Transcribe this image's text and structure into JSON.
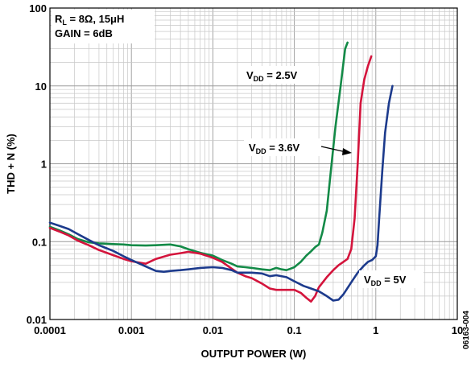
{
  "chart_data": {
    "type": "line",
    "xlabel": "OUTPUT POWER (W)",
    "ylabel": "THD + N (%)",
    "xscale": "log",
    "yscale": "log",
    "xlim": [
      0.0001,
      10
    ],
    "ylim": [
      0.01,
      100
    ],
    "x_ticks": [
      "0.0001",
      "0.001",
      "0.01",
      "0.1",
      "1",
      "10"
    ],
    "y_ticks": [
      "0.01",
      "0.1",
      "1",
      "10",
      "100"
    ],
    "grid": true,
    "annotations": [
      {
        "id": "cond1",
        "text": "RL = 8Ω, 15μH"
      },
      {
        "id": "cond2",
        "text": "GAIN = 6dB"
      }
    ],
    "series": [
      {
        "name": "VDD = 2.5V",
        "color": "#138a47",
        "points": [
          [
            0.0001,
            0.155
          ],
          [
            0.00013,
            0.14
          ],
          [
            0.00017,
            0.124
          ],
          [
            0.00022,
            0.108
          ],
          [
            0.0003,
            0.098
          ],
          [
            0.0004,
            0.095
          ],
          [
            0.0006,
            0.093
          ],
          [
            0.0008,
            0.092
          ],
          [
            0.001,
            0.09
          ],
          [
            0.0015,
            0.089
          ],
          [
            0.002,
            0.09
          ],
          [
            0.003,
            0.092
          ],
          [
            0.004,
            0.087
          ],
          [
            0.005,
            0.08
          ],
          [
            0.007,
            0.072
          ],
          [
            0.01,
            0.066
          ],
          [
            0.013,
            0.058
          ],
          [
            0.017,
            0.052
          ],
          [
            0.02,
            0.048
          ],
          [
            0.025,
            0.047
          ],
          [
            0.03,
            0.046
          ],
          [
            0.04,
            0.044
          ],
          [
            0.05,
            0.043
          ],
          [
            0.06,
            0.046
          ],
          [
            0.07,
            0.044
          ],
          [
            0.08,
            0.043
          ],
          [
            0.09,
            0.045
          ],
          [
            0.1,
            0.047
          ],
          [
            0.12,
            0.055
          ],
          [
            0.14,
            0.066
          ],
          [
            0.16,
            0.075
          ],
          [
            0.18,
            0.085
          ],
          [
            0.2,
            0.092
          ],
          [
            0.22,
            0.13
          ],
          [
            0.25,
            0.25
          ],
          [
            0.28,
            0.8
          ],
          [
            0.32,
            3
          ],
          [
            0.37,
            10
          ],
          [
            0.42,
            30
          ],
          [
            0.45,
            36
          ]
        ]
      },
      {
        "name": "VDD = 3.6V",
        "color": "#d4143c",
        "points": [
          [
            0.0001,
            0.15
          ],
          [
            0.00013,
            0.135
          ],
          [
            0.00017,
            0.12
          ],
          [
            0.00022,
            0.103
          ],
          [
            0.0003,
            0.09
          ],
          [
            0.0004,
            0.078
          ],
          [
            0.0006,
            0.067
          ],
          [
            0.0008,
            0.06
          ],
          [
            0.001,
            0.056
          ],
          [
            0.0015,
            0.052
          ],
          [
            0.002,
            0.06
          ],
          [
            0.003,
            0.068
          ],
          [
            0.004,
            0.071
          ],
          [
            0.005,
            0.074
          ],
          [
            0.006,
            0.072
          ],
          [
            0.007,
            0.07
          ],
          [
            0.01,
            0.062
          ],
          [
            0.013,
            0.055
          ],
          [
            0.017,
            0.045
          ],
          [
            0.02,
            0.04
          ],
          [
            0.025,
            0.036
          ],
          [
            0.03,
            0.034
          ],
          [
            0.04,
            0.029
          ],
          [
            0.05,
            0.025
          ],
          [
            0.06,
            0.024
          ],
          [
            0.08,
            0.024
          ],
          [
            0.1,
            0.024
          ],
          [
            0.12,
            0.022
          ],
          [
            0.14,
            0.019
          ],
          [
            0.16,
            0.017
          ],
          [
            0.18,
            0.02
          ],
          [
            0.2,
            0.026
          ],
          [
            0.25,
            0.035
          ],
          [
            0.3,
            0.043
          ],
          [
            0.35,
            0.05
          ],
          [
            0.4,
            0.055
          ],
          [
            0.45,
            0.06
          ],
          [
            0.5,
            0.08
          ],
          [
            0.55,
            0.2
          ],
          [
            0.6,
            1
          ],
          [
            0.65,
            6
          ],
          [
            0.72,
            12
          ],
          [
            0.8,
            18
          ],
          [
            0.88,
            24
          ]
        ]
      },
      {
        "name": "VDD = 5V",
        "color": "#1c3a8c",
        "points": [
          [
            0.0001,
            0.175
          ],
          [
            0.00013,
            0.16
          ],
          [
            0.00017,
            0.145
          ],
          [
            0.00022,
            0.125
          ],
          [
            0.0003,
            0.105
          ],
          [
            0.0004,
            0.09
          ],
          [
            0.0006,
            0.076
          ],
          [
            0.0008,
            0.065
          ],
          [
            0.001,
            0.058
          ],
          [
            0.0015,
            0.048
          ],
          [
            0.002,
            0.042
          ],
          [
            0.0025,
            0.041
          ],
          [
            0.003,
            0.042
          ],
          [
            0.004,
            0.043
          ],
          [
            0.005,
            0.044
          ],
          [
            0.007,
            0.046
          ],
          [
            0.01,
            0.047
          ],
          [
            0.013,
            0.046
          ],
          [
            0.017,
            0.043
          ],
          [
            0.02,
            0.04
          ],
          [
            0.03,
            0.04
          ],
          [
            0.04,
            0.039
          ],
          [
            0.05,
            0.036
          ],
          [
            0.06,
            0.037
          ],
          [
            0.08,
            0.035
          ],
          [
            0.1,
            0.031
          ],
          [
            0.13,
            0.027
          ],
          [
            0.16,
            0.025
          ],
          [
            0.2,
            0.023
          ],
          [
            0.25,
            0.02
          ],
          [
            0.3,
            0.0175
          ],
          [
            0.35,
            0.018
          ],
          [
            0.4,
            0.021
          ],
          [
            0.5,
            0.03
          ],
          [
            0.6,
            0.04
          ],
          [
            0.7,
            0.048
          ],
          [
            0.8,
            0.055
          ],
          [
            0.9,
            0.058
          ],
          [
            1.0,
            0.065
          ],
          [
            1.05,
            0.09
          ],
          [
            1.1,
            0.2
          ],
          [
            1.2,
            0.8
          ],
          [
            1.3,
            2.5
          ],
          [
            1.45,
            6
          ],
          [
            1.6,
            10
          ]
        ]
      }
    ],
    "curve_labels": [
      {
        "series": "VDD = 2.5V",
        "text_main": "V",
        "text_sub": "DD",
        "text_rest": " = 2.5V"
      },
      {
        "series": "VDD = 3.6V",
        "text_main": "V",
        "text_sub": "DD",
        "text_rest": " = 3.6V"
      },
      {
        "series": "VDD = 5V",
        "text_main": "V",
        "text_sub": "DD",
        "text_rest": " = 5V"
      }
    ],
    "figure_id": "06163-004"
  }
}
